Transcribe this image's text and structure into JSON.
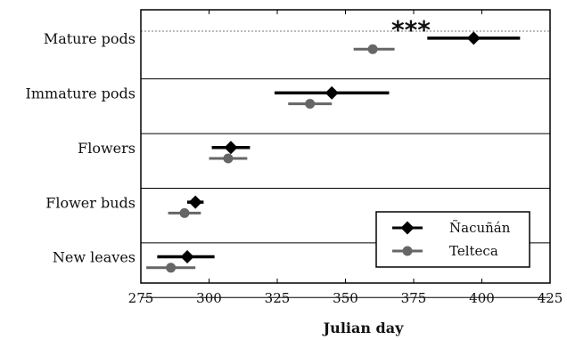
{
  "chart_data": {
    "type": "scatter",
    "subtype": "horizontal-interval-plot",
    "categories": [
      "Mature pods",
      "Immature pods",
      "Flowers",
      "Flower buds",
      "New leaves"
    ],
    "xlabel": "Julian day",
    "ylabel": "",
    "xlim": [
      275,
      425
    ],
    "xticks": [
      "275",
      "300",
      "325",
      "350",
      "375",
      "400",
      "425"
    ],
    "grid": "horizontal dotted separators between categories",
    "legend_position": "bottom-right",
    "annotations": [
      {
        "text": "***",
        "category": "Mature pods",
        "x": 374
      }
    ],
    "series": [
      {
        "name": "Ñacuñán",
        "marker": "diamond",
        "color": "#000000",
        "points": [
          {
            "category": "Mature pods",
            "x": 397,
            "low": 380,
            "high": 414
          },
          {
            "category": "Immature pods",
            "x": 345,
            "low": 324,
            "high": 366
          },
          {
            "category": "Flowers",
            "x": 308,
            "low": 301,
            "high": 315
          },
          {
            "category": "Flower buds",
            "x": 295,
            "low": 292,
            "high": 298
          },
          {
            "category": "New leaves",
            "x": 292,
            "low": 281,
            "high": 302
          }
        ]
      },
      {
        "name": "Telteca",
        "marker": "circle",
        "color": "#666666",
        "points": [
          {
            "category": "Mature pods",
            "x": 360,
            "low": 353,
            "high": 368
          },
          {
            "category": "Immature pods",
            "x": 337,
            "low": 329,
            "high": 345
          },
          {
            "category": "Flowers",
            "x": 307,
            "low": 300,
            "high": 314
          },
          {
            "category": "Flower buds",
            "x": 291,
            "low": 285,
            "high": 297
          },
          {
            "category": "New leaves",
            "x": 286,
            "low": 277,
            "high": 295
          }
        ]
      }
    ]
  }
}
